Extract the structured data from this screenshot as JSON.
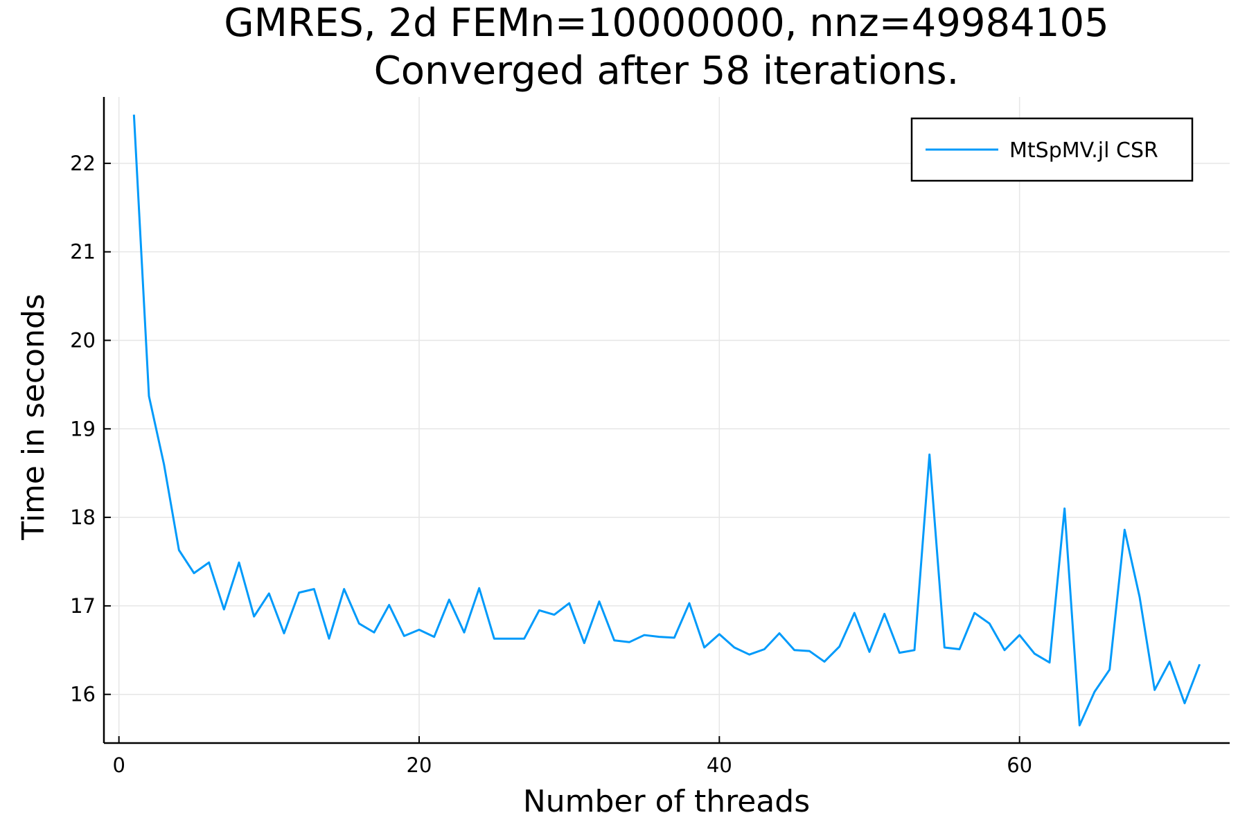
{
  "chart_data": {
    "type": "line",
    "title": "GMRES, 2d FEMn=10000000, nnz=49984105",
    "subtitle": "Converged after 58 iterations.",
    "xlabel": "Number of threads",
    "ylabel": "Time in seconds",
    "xlim": [
      -1,
      74
    ],
    "ylim": [
      15.45,
      22.75
    ],
    "xticks": [
      0,
      20,
      40,
      60
    ],
    "yticks": [
      16,
      17,
      18,
      19,
      20,
      21,
      22
    ],
    "grid": true,
    "legend_position": "top-right",
    "series": [
      {
        "name": "MtSpMV.jl CSR",
        "color": "#009AFA",
        "x": [
          1,
          2,
          3,
          4,
          5,
          6,
          7,
          8,
          9,
          10,
          11,
          12,
          13,
          14,
          15,
          16,
          17,
          18,
          19,
          20,
          21,
          22,
          23,
          24,
          25,
          26,
          27,
          28,
          29,
          30,
          31,
          32,
          33,
          34,
          35,
          36,
          37,
          38,
          39,
          40,
          41,
          42,
          43,
          44,
          45,
          46,
          47,
          48,
          49,
          50,
          51,
          52,
          53,
          54,
          55,
          56,
          57,
          58,
          59,
          60,
          61,
          62,
          63,
          64,
          65,
          66,
          67,
          68,
          69,
          70,
          71,
          72
        ],
        "values": [
          22.55,
          19.37,
          18.6,
          17.63,
          17.37,
          17.49,
          16.96,
          17.49,
          16.88,
          17.14,
          16.69,
          17.15,
          17.19,
          16.63,
          17.19,
          16.8,
          16.7,
          17.01,
          16.66,
          16.73,
          16.65,
          17.07,
          16.7,
          17.2,
          16.63,
          16.63,
          16.63,
          16.95,
          16.9,
          17.03,
          16.58,
          17.05,
          16.61,
          16.59,
          16.67,
          16.65,
          16.64,
          17.03,
          16.53,
          16.68,
          16.53,
          16.45,
          16.51,
          16.69,
          16.5,
          16.49,
          16.37,
          16.54,
          16.92,
          16.48,
          16.91,
          16.47,
          16.5,
          18.71,
          16.53,
          16.51,
          16.92,
          16.8,
          16.5,
          16.67,
          16.46,
          16.36,
          18.1,
          15.65,
          16.03,
          16.28,
          17.86,
          17.1,
          16.05,
          16.37,
          15.9,
          16.34
        ]
      }
    ]
  }
}
